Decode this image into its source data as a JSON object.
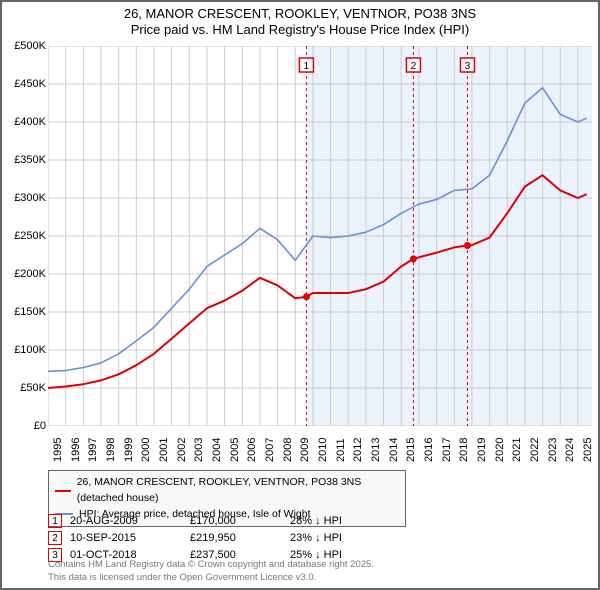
{
  "title_l1": "26, MANOR CRESCENT, ROOKLEY, VENTNOR, PO38 3NS",
  "title_l2": "Price paid vs. HM Land Registry's House Price Index (HPI)",
  "chart": {
    "type": "line",
    "background_color": "#ffffff",
    "grid_color": "#cccccc",
    "x_year_min": 1995,
    "x_year_max": 2025.8,
    "x_ticks": [
      1995,
      1996,
      1997,
      1998,
      1999,
      2000,
      2001,
      2002,
      2003,
      2004,
      2005,
      2006,
      2007,
      2008,
      2009,
      2010,
      2011,
      2012,
      2013,
      2014,
      2015,
      2016,
      2017,
      2018,
      2019,
      2020,
      2021,
      2022,
      2023,
      2024,
      2025
    ],
    "y_min": 0,
    "y_max": 500000,
    "y_ticks": [
      0,
      50000,
      100000,
      150000,
      200000,
      250000,
      300000,
      350000,
      400000,
      450000,
      500000
    ],
    "y_tick_labels": [
      "£0",
      "£50K",
      "£100K",
      "£150K",
      "£200K",
      "£250K",
      "£300K",
      "£350K",
      "£400K",
      "£450K",
      "£500K"
    ],
    "shade_start": 2009.63,
    "shade_color": "#eaf2fb",
    "series_property": {
      "label": "26, MANOR CRESCENT, ROOKLEY, VENTNOR, PO38 3NS (detached house)",
      "color": "#e00000",
      "line_width": 2,
      "points": [
        [
          1995,
          50000
        ],
        [
          1996,
          52000
        ],
        [
          1997,
          55000
        ],
        [
          1998,
          60000
        ],
        [
          1999,
          68000
        ],
        [
          2000,
          80000
        ],
        [
          2001,
          95000
        ],
        [
          2002,
          115000
        ],
        [
          2003,
          135000
        ],
        [
          2004,
          155000
        ],
        [
          2005,
          165000
        ],
        [
          2006,
          178000
        ],
        [
          2007,
          195000
        ],
        [
          2008,
          185000
        ],
        [
          2009,
          168000
        ],
        [
          2009.63,
          170000
        ],
        [
          2010,
          175000
        ],
        [
          2011,
          175000
        ],
        [
          2012,
          175000
        ],
        [
          2013,
          180000
        ],
        [
          2014,
          190000
        ],
        [
          2015,
          210000
        ],
        [
          2015.69,
          219950
        ],
        [
          2016,
          222000
        ],
        [
          2017,
          228000
        ],
        [
          2018,
          235000
        ],
        [
          2018.75,
          237500
        ],
        [
          2019,
          238000
        ],
        [
          2020,
          248000
        ],
        [
          2021,
          280000
        ],
        [
          2022,
          315000
        ],
        [
          2023,
          330000
        ],
        [
          2024,
          310000
        ],
        [
          2025,
          300000
        ],
        [
          2025.5,
          305000
        ]
      ]
    },
    "series_hpi": {
      "label": "HPI: Average price, detached house, Isle of Wight",
      "color": "#6a8fd8",
      "line_width": 1.6,
      "points": [
        [
          1995,
          72000
        ],
        [
          1996,
          73000
        ],
        [
          1997,
          77000
        ],
        [
          1998,
          83000
        ],
        [
          1999,
          95000
        ],
        [
          2000,
          112000
        ],
        [
          2001,
          130000
        ],
        [
          2002,
          155000
        ],
        [
          2003,
          180000
        ],
        [
          2004,
          210000
        ],
        [
          2005,
          225000
        ],
        [
          2006,
          240000
        ],
        [
          2007,
          260000
        ],
        [
          2008,
          245000
        ],
        [
          2009,
          218000
        ],
        [
          2010,
          250000
        ],
        [
          2011,
          248000
        ],
        [
          2012,
          250000
        ],
        [
          2013,
          255000
        ],
        [
          2014,
          265000
        ],
        [
          2015,
          280000
        ],
        [
          2016,
          292000
        ],
        [
          2017,
          298000
        ],
        [
          2018,
          310000
        ],
        [
          2019,
          312000
        ],
        [
          2020,
          330000
        ],
        [
          2021,
          375000
        ],
        [
          2022,
          425000
        ],
        [
          2023,
          445000
        ],
        [
          2024,
          410000
        ],
        [
          2025,
          400000
        ],
        [
          2025.5,
          405000
        ]
      ]
    },
    "vlines": [
      {
        "x": 2009.63,
        "color": "#e00000"
      },
      {
        "x": 2015.69,
        "color": "#e00000"
      },
      {
        "x": 2018.75,
        "color": "#e00000"
      }
    ],
    "sale_markers": [
      {
        "n": "1",
        "x": 2009.63,
        "y_label": 475000,
        "color": "#e00000",
        "px": 170000
      },
      {
        "n": "2",
        "x": 2015.69,
        "y_label": 475000,
        "color": "#e00000",
        "px": 219950
      },
      {
        "n": "3",
        "x": 2018.75,
        "y_label": 475000,
        "color": "#e00000",
        "px": 237500
      }
    ],
    "label_fontsize": 11,
    "title_fontsize": 13
  },
  "sales": [
    {
      "n": "1",
      "date": "20-AUG-2009",
      "price": "£170,000",
      "diff": "28% ↓ HPI",
      "color": "#e00000"
    },
    {
      "n": "2",
      "date": "10-SEP-2015",
      "price": "£219,950",
      "diff": "23% ↓ HPI",
      "color": "#e00000"
    },
    {
      "n": "3",
      "date": "01-OCT-2018",
      "price": "£237,500",
      "diff": "25% ↓ HPI",
      "color": "#e00000"
    }
  ],
  "footer_l1": "Contains HM Land Registry data © Crown copyright and database right 2025.",
  "footer_l2": "This data is licensed under the Open Government Licence v3.0."
}
